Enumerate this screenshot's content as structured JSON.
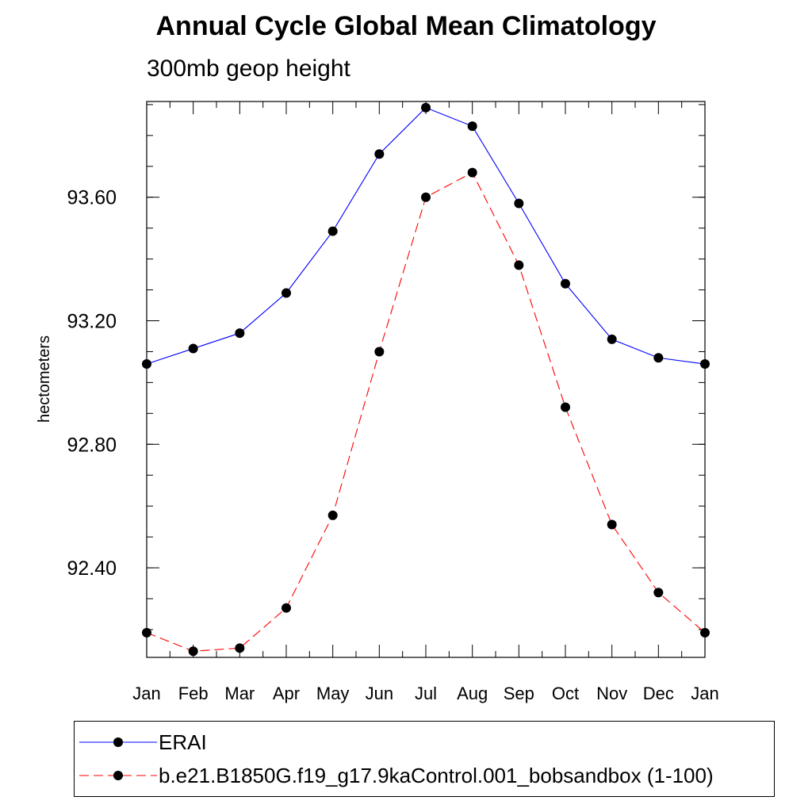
{
  "chart_data": {
    "type": "line",
    "title": "Annual Cycle Global Mean Climatology",
    "subtitle": "300mb geop height",
    "ylabel": "hectometers",
    "xlabel": "",
    "categories": [
      "Jan",
      "Feb",
      "Mar",
      "Apr",
      "May",
      "Jun",
      "Jul",
      "Aug",
      "Sep",
      "Oct",
      "Nov",
      "Dec",
      "Jan"
    ],
    "ylim": [
      92.11,
      93.91
    ],
    "yticks": [
      92.4,
      92.8,
      93.2,
      93.6
    ],
    "ytick_labels": [
      "92.40",
      "92.80",
      "93.20",
      "93.60"
    ],
    "grid": false,
    "legend_placement": "bottom",
    "series": [
      {
        "name": "ERAI",
        "color": "#0000ff",
        "dash": "solid",
        "values": [
          93.06,
          93.11,
          93.16,
          93.29,
          93.49,
          93.74,
          93.89,
          93.83,
          93.58,
          93.32,
          93.14,
          93.08,
          93.06
        ]
      },
      {
        "name": "b.e21.B1850G.f19_g17.9kaControl.001_bobsandbox (1-100)",
        "color": "#ff0000",
        "dash": "dashed",
        "values": [
          92.19,
          92.13,
          92.14,
          92.27,
          92.57,
          93.1,
          93.6,
          93.68,
          93.38,
          92.92,
          92.54,
          92.32,
          92.19
        ]
      }
    ]
  }
}
